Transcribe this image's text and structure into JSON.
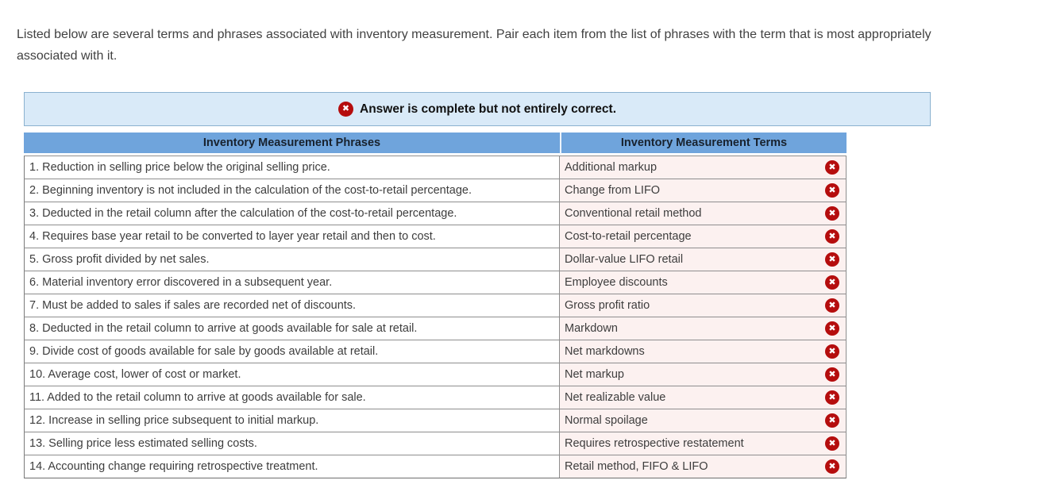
{
  "instructions": "Listed below are several terms and phrases associated with inventory measurement. Pair each item from the list of phrases with the term that is most appropriately associated with it.",
  "banner": {
    "text": "Answer is complete but not entirely correct.",
    "icon": "x-circle-icon",
    "background": "#d9eaf8",
    "border_color": "#8ab1cf"
  },
  "table": {
    "headers": {
      "phrases": "Inventory Measurement Phrases",
      "terms": "Inventory Measurement Terms"
    },
    "rows": [
      {
        "phrase": "1. Reduction in selling price below the original selling price.",
        "term": "Additional markup",
        "status": "incorrect"
      },
      {
        "phrase": "2. Beginning inventory is not included in the calculation of the cost-to-retail percentage.",
        "term": "Change from LIFO",
        "status": "incorrect"
      },
      {
        "phrase": "3. Deducted in the retail column after the calculation of the cost-to-retail percentage.",
        "term": "Conventional retail method",
        "status": "incorrect"
      },
      {
        "phrase": "4. Requires base year retail to be converted to layer year retail and then to cost.",
        "term": "Cost-to-retail percentage",
        "status": "incorrect"
      },
      {
        "phrase": "5. Gross profit divided by net sales.",
        "term": "Dollar-value LIFO retail",
        "status": "incorrect"
      },
      {
        "phrase": "6. Material inventory error discovered in a subsequent year.",
        "term": "Employee discounts",
        "status": "incorrect"
      },
      {
        "phrase": "7. Must be added to sales if sales are recorded net of discounts.",
        "term": "Gross profit ratio",
        "status": "incorrect"
      },
      {
        "phrase": "8. Deducted in the retail column to arrive at goods available for sale at retail.",
        "term": "Markdown",
        "status": "incorrect"
      },
      {
        "phrase": "9. Divide cost of goods available for sale by goods available at retail.",
        "term": "Net markdowns",
        "status": "incorrect"
      },
      {
        "phrase": "10. Average cost, lower of cost or market.",
        "term": "Net markup",
        "status": "incorrect"
      },
      {
        "phrase": "11. Added to the retail column to arrive at goods available for sale.",
        "term": "Net realizable value",
        "status": "incorrect"
      },
      {
        "phrase": "12. Increase in selling price subsequent to initial markup.",
        "term": "Normal spoilage",
        "status": "incorrect"
      },
      {
        "phrase": "13. Selling price less estimated selling costs.",
        "term": "Requires retrospective restatement",
        "status": "incorrect"
      },
      {
        "phrase": "14. Accounting change requiring retrospective treatment.",
        "term": "Retail method, FIFO & LIFO",
        "status": "incorrect"
      }
    ]
  },
  "colors": {
    "header_bg": "#6fa4dc",
    "term_cell_bg": "#fcf1f0",
    "error_red": "#b50d0d",
    "banner_bg": "#d9eaf8"
  },
  "icons": {
    "incorrect_glyph": "✖"
  }
}
